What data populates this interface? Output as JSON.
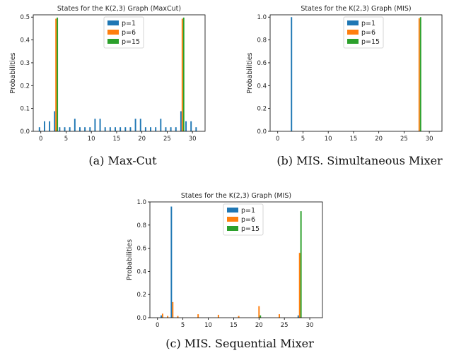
{
  "colors": {
    "p1": "#1f77b4",
    "p6": "#ff7f0e",
    "p15": "#2ca02c"
  },
  "chart_data": [
    {
      "type": "bar",
      "title": "States for the K(2,3) Graph (MaxCut)",
      "ylabel": "Probabilities",
      "caption": "(a) Max-Cut",
      "ylim": [
        0,
        0.51
      ],
      "xlim": [
        -1.5,
        32.5
      ],
      "xticks": [
        0,
        5,
        10,
        15,
        20,
        25,
        30
      ],
      "yticks": [
        {
          "v": 0,
          "t": "0.0"
        },
        {
          "v": 0.1,
          "t": "0.1"
        },
        {
          "v": 0.2,
          "t": "0.2"
        },
        {
          "v": 0.3,
          "t": "0.3"
        },
        {
          "v": 0.4,
          "t": "0.4"
        },
        {
          "v": 0.5,
          "t": "0.5"
        }
      ],
      "legend_position": "upper-center",
      "series": [
        {
          "name": "p=1",
          "x": [
            0,
            1,
            2,
            3,
            4,
            5,
            6,
            7,
            8,
            9,
            10,
            11,
            12,
            13,
            14,
            15,
            16,
            17,
            18,
            19,
            20,
            21,
            22,
            23,
            24,
            25,
            26,
            27,
            28,
            29,
            30,
            31
          ],
          "values": [
            0.018,
            0.044,
            0.044,
            0.088,
            0.018,
            0.018,
            0.018,
            0.055,
            0.018,
            0.018,
            0.018,
            0.055,
            0.055,
            0.018,
            0.018,
            0.018,
            0.018,
            0.018,
            0.018,
            0.055,
            0.055,
            0.018,
            0.018,
            0.018,
            0.055,
            0.018,
            0.018,
            0.018,
            0.088,
            0.044,
            0.044,
            0.018
          ]
        },
        {
          "name": "p=6",
          "x": [
            3,
            28
          ],
          "values": [
            0.493,
            0.493
          ]
        },
        {
          "name": "p=15",
          "x": [
            3,
            28
          ],
          "values": [
            0.498,
            0.498
          ]
        }
      ]
    },
    {
      "type": "bar",
      "title": "States for the K(2,3) Graph (MIS)",
      "ylabel": "Probabilities",
      "caption": "(b) MIS. Simultaneous Mixer",
      "ylim": [
        0,
        1.02
      ],
      "xlim": [
        -1.5,
        32.5
      ],
      "xticks": [
        0,
        5,
        10,
        15,
        20,
        25,
        30
      ],
      "yticks": [
        {
          "v": 0,
          "t": "0.0"
        },
        {
          "v": 0.2,
          "t": "0.2"
        },
        {
          "v": 0.4,
          "t": "0.4"
        },
        {
          "v": 0.6,
          "t": "0.6"
        },
        {
          "v": 0.8,
          "t": "0.8"
        },
        {
          "v": 1.0,
          "t": "1.0"
        }
      ],
      "legend_position": "upper-center",
      "series": [
        {
          "name": "p=1",
          "x": [
            3
          ],
          "values": [
            1.0
          ]
        },
        {
          "name": "p=6",
          "x": [
            28
          ],
          "values": [
            0.99
          ]
        },
        {
          "name": "p=15",
          "x": [
            28
          ],
          "values": [
            1.0
          ]
        }
      ]
    },
    {
      "type": "bar",
      "title": "States for the K(2,3) Graph (MIS)",
      "ylabel": "Probabilities",
      "caption": "(c) MIS. Sequential Mixer",
      "ylim": [
        0,
        1.0
      ],
      "xlim": [
        -1.5,
        32.5
      ],
      "xticks": [
        0,
        5,
        10,
        15,
        20,
        25,
        30
      ],
      "yticks": [
        {
          "v": 0,
          "t": "0.0"
        },
        {
          "v": 0.2,
          "t": "0.2"
        },
        {
          "v": 0.4,
          "t": "0.4"
        },
        {
          "v": 0.6,
          "t": "0.6"
        },
        {
          "v": 0.8,
          "t": "0.8"
        },
        {
          "v": 1.0,
          "t": "1.0"
        }
      ],
      "legend_position": "upper-right",
      "series": [
        {
          "name": "p=1",
          "x": [
            1,
            3,
            28
          ],
          "values": [
            0.02,
            0.96,
            0.02
          ]
        },
        {
          "name": "p=6",
          "x": [
            1,
            2,
            3,
            4,
            8,
            12,
            16,
            20,
            24,
            28
          ],
          "values": [
            0.035,
            0.015,
            0.135,
            0.015,
            0.03,
            0.025,
            0.015,
            0.1,
            0.03,
            0.56
          ]
        },
        {
          "name": "p=15",
          "x": [
            20,
            28
          ],
          "values": [
            0.02,
            0.92
          ]
        }
      ]
    }
  ]
}
